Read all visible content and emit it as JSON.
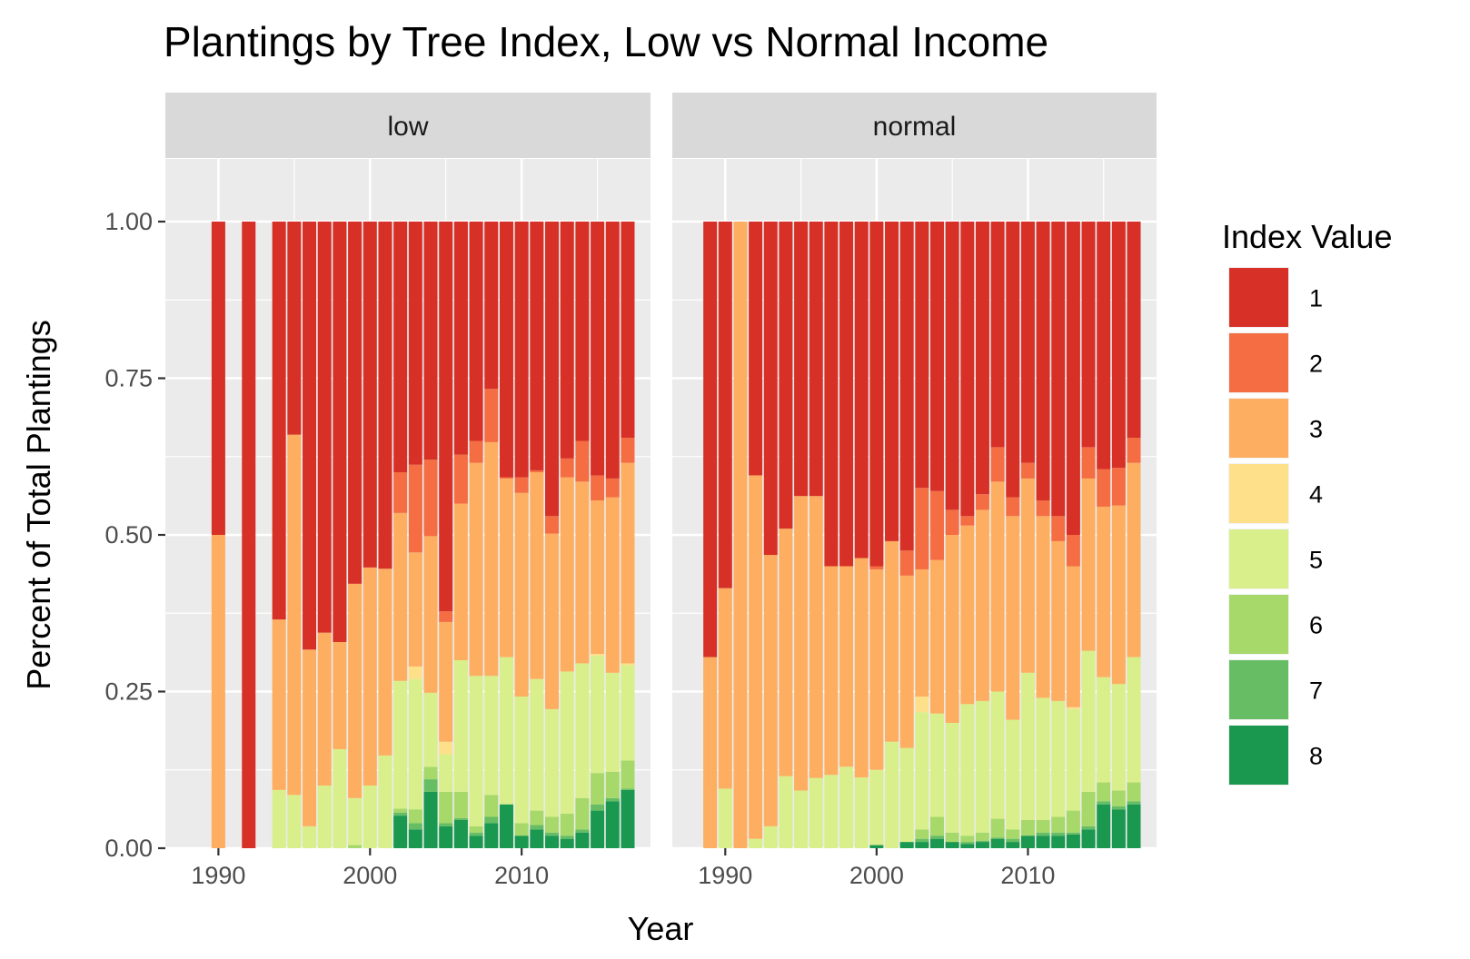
{
  "chart_data": {
    "type": "bar",
    "stacked": true,
    "title": "Plantings by Tree Index, Low vs Normal Income",
    "xlabel": "Year",
    "ylabel": "Percent of Total Plantings",
    "ylim": [
      0,
      1.1
    ],
    "y_ticks": [
      0,
      0.25,
      0.5,
      0.75,
      1
    ],
    "y_tick_labels": [
      "0.00",
      "0.25",
      "0.50",
      "0.75",
      "1.00"
    ],
    "xlim": [
      1986.5,
      2018.5
    ],
    "x_ticks": [
      1990,
      2000,
      2010
    ],
    "x_tick_labels": [
      "1990",
      "2000",
      "2010"
    ],
    "grid": true,
    "legend": {
      "title": "Index Value",
      "placement": "right",
      "entries": [
        "1",
        "2",
        "3",
        "4",
        "5",
        "6",
        "7",
        "8"
      ]
    },
    "colors": {
      "1": "#d73027",
      "2": "#f46d43",
      "3": "#fdae61",
      "4": "#fee08b",
      "5": "#d9ef8b",
      "6": "#a6d96a",
      "7": "#66bd63",
      "8": "#1a9850"
    },
    "stack_order_bottom_to_top": [
      "8",
      "7",
      "6",
      "5",
      "4",
      "3",
      "2",
      "1"
    ],
    "panels": [
      {
        "strip": "low",
        "bars": [
          {
            "x": 1990,
            "values": {
              "1": 0.5,
              "2": 0,
              "3": 0.5,
              "4": 0,
              "5": 0,
              "6": 0,
              "7": 0,
              "8": 0
            }
          },
          {
            "x": 1992,
            "values": {
              "1": 1.0,
              "2": 0,
              "3": 0,
              "4": 0,
              "5": 0,
              "6": 0,
              "7": 0,
              "8": 0
            }
          },
          {
            "x": 1994,
            "values": {
              "1": 0.635,
              "2": 0,
              "3": 0.272,
              "4": 0,
              "5": 0.093,
              "6": 0,
              "7": 0,
              "8": 0
            }
          },
          {
            "x": 1995,
            "values": {
              "1": 0.34,
              "2": 0,
              "3": 0.575,
              "4": 0,
              "5": 0.085,
              "6": 0,
              "7": 0,
              "8": 0
            }
          },
          {
            "x": 1996,
            "values": {
              "1": 0.683,
              "2": 0,
              "3": 0.282,
              "4": 0,
              "5": 0.035,
              "6": 0,
              "7": 0,
              "8": 0
            }
          },
          {
            "x": 1997,
            "values": {
              "1": 0.656,
              "2": 0,
              "3": 0.244,
              "4": 0,
              "5": 0.1,
              "6": 0,
              "7": 0,
              "8": 0
            }
          },
          {
            "x": 1998,
            "values": {
              "1": 0.671,
              "2": 0,
              "3": 0.171,
              "4": 0,
              "5": 0.158,
              "6": 0,
              "7": 0,
              "8": 0
            }
          },
          {
            "x": 1999,
            "values": {
              "1": 0.578,
              "2": 0,
              "3": 0.342,
              "4": 0,
              "5": 0.075,
              "6": 0.005,
              "7": 0,
              "8": 0
            }
          },
          {
            "x": 2000,
            "values": {
              "1": 0.552,
              "2": 0,
              "3": 0.348,
              "4": 0,
              "5": 0.1,
              "6": 0,
              "7": 0,
              "8": 0
            }
          },
          {
            "x": 2001,
            "values": {
              "1": 0.554,
              "2": 0,
              "3": 0.298,
              "4": 0,
              "5": 0.148,
              "6": 0,
              "7": 0,
              "8": 0
            }
          },
          {
            "x": 2002,
            "values": {
              "1": 0.4,
              "2": 0.065,
              "3": 0.268,
              "4": 0,
              "5": 0.204,
              "6": 0.006,
              "7": 0.005,
              "8": 0.052
            }
          },
          {
            "x": 2003,
            "values": {
              "1": 0.388,
              "2": 0.14,
              "3": 0.182,
              "4": 0.02,
              "5": 0.208,
              "6": 0.022,
              "7": 0.01,
              "8": 0.03
            }
          },
          {
            "x": 2004,
            "values": {
              "1": 0.38,
              "2": 0.122,
              "3": 0.25,
              "4": 0,
              "5": 0.118,
              "6": 0.02,
              "7": 0.02,
              "8": 0.09
            }
          },
          {
            "x": 2005,
            "values": {
              "1": 0.622,
              "2": 0.017,
              "3": 0.191,
              "4": 0.02,
              "5": 0.06,
              "6": 0.05,
              "7": 0.005,
              "8": 0.035
            }
          },
          {
            "x": 2006,
            "values": {
              "1": 0.372,
              "2": 0.078,
              "3": 0.25,
              "4": 0,
              "5": 0.21,
              "6": 0.042,
              "7": 0.003,
              "8": 0.045
            }
          },
          {
            "x": 2007,
            "values": {
              "1": 0.35,
              "2": 0.035,
              "3": 0.34,
              "4": 0,
              "5": 0.24,
              "6": 0.01,
              "7": 0.005,
              "8": 0.02
            }
          },
          {
            "x": 2008,
            "values": {
              "1": 0.267,
              "2": 0.085,
              "3": 0.373,
              "4": 0,
              "5": 0.19,
              "6": 0.035,
              "7": 0.01,
              "8": 0.04
            }
          },
          {
            "x": 2009,
            "values": {
              "1": 0.408,
              "2": 0.002,
              "3": 0.285,
              "4": 0,
              "5": 0.235,
              "6": 0,
              "7": 0,
              "8": 0.07
            }
          },
          {
            "x": 2010,
            "values": {
              "1": 0.408,
              "2": 0.025,
              "3": 0.325,
              "4": 0,
              "5": 0.202,
              "6": 0.02,
              "7": 0,
              "8": 0.02
            }
          },
          {
            "x": 2011,
            "values": {
              "1": 0.397,
              "2": 0.003,
              "3": 0.33,
              "4": 0,
              "5": 0.21,
              "6": 0.023,
              "7": 0.007,
              "8": 0.03
            }
          },
          {
            "x": 2012,
            "values": {
              "1": 0.47,
              "2": 0.028,
              "3": 0.28,
              "4": 0,
              "5": 0.172,
              "6": 0.025,
              "7": 0.005,
              "8": 0.02
            }
          },
          {
            "x": 2013,
            "values": {
              "1": 0.378,
              "2": 0.03,
              "3": 0.31,
              "4": 0,
              "5": 0.227,
              "6": 0.035,
              "7": 0.005,
              "8": 0.015
            }
          },
          {
            "x": 2014,
            "values": {
              "1": 0.35,
              "2": 0.065,
              "3": 0.29,
              "4": 0,
              "5": 0.215,
              "6": 0.05,
              "7": 0.005,
              "8": 0.025
            }
          },
          {
            "x": 2015,
            "values": {
              "1": 0.405,
              "2": 0.04,
              "3": 0.245,
              "4": 0.003,
              "5": 0.187,
              "6": 0.05,
              "7": 0.01,
              "8": 0.06
            }
          },
          {
            "x": 2016,
            "values": {
              "1": 0.41,
              "2": 0.03,
              "3": 0.28,
              "4": 0,
              "5": 0.158,
              "6": 0.042,
              "7": 0.005,
              "8": 0.075
            }
          },
          {
            "x": 2017,
            "values": {
              "1": 0.345,
              "2": 0.04,
              "3": 0.32,
              "4": 0.003,
              "5": 0.152,
              "6": 0.045,
              "7": 0.002,
              "8": 0.093
            }
          }
        ]
      },
      {
        "strip": "normal",
        "bars": [
          {
            "x": 1989,
            "values": {
              "1": 0.695,
              "2": 0,
              "3": 0.305,
              "4": 0,
              "5": 0,
              "6": 0,
              "7": 0,
              "8": 0
            }
          },
          {
            "x": 1990,
            "values": {
              "1": 0.585,
              "2": 0,
              "3": 0.32,
              "4": 0,
              "5": 0.095,
              "6": 0,
              "7": 0,
              "8": 0
            }
          },
          {
            "x": 1991,
            "values": {
              "1": 0,
              "2": 0,
              "3": 1.0,
              "4": 0,
              "5": 0,
              "6": 0,
              "7": 0,
              "8": 0
            }
          },
          {
            "x": 1992,
            "values": {
              "1": 0.405,
              "2": 0,
              "3": 0.58,
              "4": 0,
              "5": 0.015,
              "6": 0,
              "7": 0,
              "8": 0
            }
          },
          {
            "x": 1993,
            "values": {
              "1": 0.532,
              "2": 0,
              "3": 0.433,
              "4": 0,
              "5": 0.035,
              "6": 0,
              "7": 0,
              "8": 0
            }
          },
          {
            "x": 1994,
            "values": {
              "1": 0.49,
              "2": 0,
              "3": 0.395,
              "4": 0,
              "5": 0.115,
              "6": 0,
              "7": 0,
              "8": 0
            }
          },
          {
            "x": 1995,
            "values": {
              "1": 0.438,
              "2": 0,
              "3": 0.47,
              "4": 0,
              "5": 0.092,
              "6": 0,
              "7": 0,
              "8": 0
            }
          },
          {
            "x": 1996,
            "values": {
              "1": 0.438,
              "2": 0,
              "3": 0.45,
              "4": 0,
              "5": 0.112,
              "6": 0,
              "7": 0,
              "8": 0
            }
          },
          {
            "x": 1997,
            "values": {
              "1": 0.55,
              "2": 0,
              "3": 0.333,
              "4": 0,
              "5": 0.117,
              "6": 0,
              "7": 0,
              "8": 0
            }
          },
          {
            "x": 1998,
            "values": {
              "1": 0.55,
              "2": 0,
              "3": 0.32,
              "4": 0,
              "5": 0.13,
              "6": 0,
              "7": 0,
              "8": 0
            }
          },
          {
            "x": 1999,
            "values": {
              "1": 0.537,
              "2": 0,
              "3": 0.35,
              "4": 0,
              "5": 0.113,
              "6": 0,
              "7": 0,
              "8": 0
            }
          },
          {
            "x": 2000,
            "values": {
              "1": 0.55,
              "2": 0.005,
              "3": 0.32,
              "4": 0,
              "5": 0.12,
              "6": 0,
              "7": 0,
              "8": 0.005
            }
          },
          {
            "x": 2001,
            "values": {
              "1": 0.51,
              "2": 0,
              "3": 0.32,
              "4": 0,
              "5": 0.17,
              "6": 0,
              "7": 0,
              "8": 0
            }
          },
          {
            "x": 2002,
            "values": {
              "1": 0.525,
              "2": 0.04,
              "3": 0.275,
              "4": 0,
              "5": 0.15,
              "6": 0,
              "7": 0,
              "8": 0.01
            }
          },
          {
            "x": 2003,
            "values": {
              "1": 0.425,
              "2": 0.13,
              "3": 0.203,
              "4": 0.025,
              "5": 0.187,
              "6": 0.015,
              "7": 0.005,
              "8": 0.01
            }
          },
          {
            "x": 2004,
            "values": {
              "1": 0.43,
              "2": 0.11,
              "3": 0.245,
              "4": 0,
              "5": 0.165,
              "6": 0.03,
              "7": 0.005,
              "8": 0.015
            }
          },
          {
            "x": 2005,
            "values": {
              "1": 0.46,
              "2": 0.04,
              "3": 0.3,
              "4": 0,
              "5": 0.175,
              "6": 0.015,
              "7": 0,
              "8": 0.01
            }
          },
          {
            "x": 2006,
            "values": {
              "1": 0.47,
              "2": 0.015,
              "3": 0.285,
              "4": 0,
              "5": 0.21,
              "6": 0.01,
              "7": 0.003,
              "8": 0.007
            }
          },
          {
            "x": 2007,
            "values": {
              "1": 0.435,
              "2": 0.025,
              "3": 0.305,
              "4": 0,
              "5": 0.21,
              "6": 0.013,
              "7": 0.002,
              "8": 0.01
            }
          },
          {
            "x": 2008,
            "values": {
              "1": 0.36,
              "2": 0.055,
              "3": 0.335,
              "4": 0,
              "5": 0.203,
              "6": 0.03,
              "7": 0.002,
              "8": 0.015
            }
          },
          {
            "x": 2009,
            "values": {
              "1": 0.44,
              "2": 0.03,
              "3": 0.325,
              "4": 0,
              "5": 0.175,
              "6": 0.015,
              "7": 0.005,
              "8": 0.01
            }
          },
          {
            "x": 2010,
            "values": {
              "1": 0.385,
              "2": 0.025,
              "3": 0.31,
              "4": 0,
              "5": 0.235,
              "6": 0.025,
              "7": 0,
              "8": 0.02
            }
          },
          {
            "x": 2011,
            "values": {
              "1": 0.445,
              "2": 0.025,
              "3": 0.29,
              "4": 0,
              "5": 0.195,
              "6": 0.02,
              "7": 0.005,
              "8": 0.02
            }
          },
          {
            "x": 2012,
            "values": {
              "1": 0.47,
              "2": 0.04,
              "3": 0.255,
              "4": 0,
              "5": 0.185,
              "6": 0.025,
              "7": 0.005,
              "8": 0.02
            }
          },
          {
            "x": 2013,
            "values": {
              "1": 0.5,
              "2": 0.05,
              "3": 0.225,
              "4": 0.003,
              "5": 0.162,
              "6": 0.035,
              "7": 0.003,
              "8": 0.022
            }
          },
          {
            "x": 2014,
            "values": {
              "1": 0.36,
              "2": 0.05,
              "3": 0.275,
              "4": 0,
              "5": 0.225,
              "6": 0.055,
              "7": 0.005,
              "8": 0.03
            }
          },
          {
            "x": 2015,
            "values": {
              "1": 0.395,
              "2": 0.06,
              "3": 0.272,
              "4": 0,
              "5": 0.168,
              "6": 0.03,
              "7": 0.005,
              "8": 0.07
            }
          },
          {
            "x": 2016,
            "values": {
              "1": 0.393,
              "2": 0.06,
              "3": 0.285,
              "4": 0,
              "5": 0.17,
              "6": 0.025,
              "7": 0.005,
              "8": 0.062
            }
          },
          {
            "x": 2017,
            "values": {
              "1": 0.345,
              "2": 0.04,
              "3": 0.31,
              "4": 0,
              "5": 0.2,
              "6": 0.03,
              "7": 0.005,
              "8": 0.07
            }
          }
        ]
      }
    ]
  }
}
